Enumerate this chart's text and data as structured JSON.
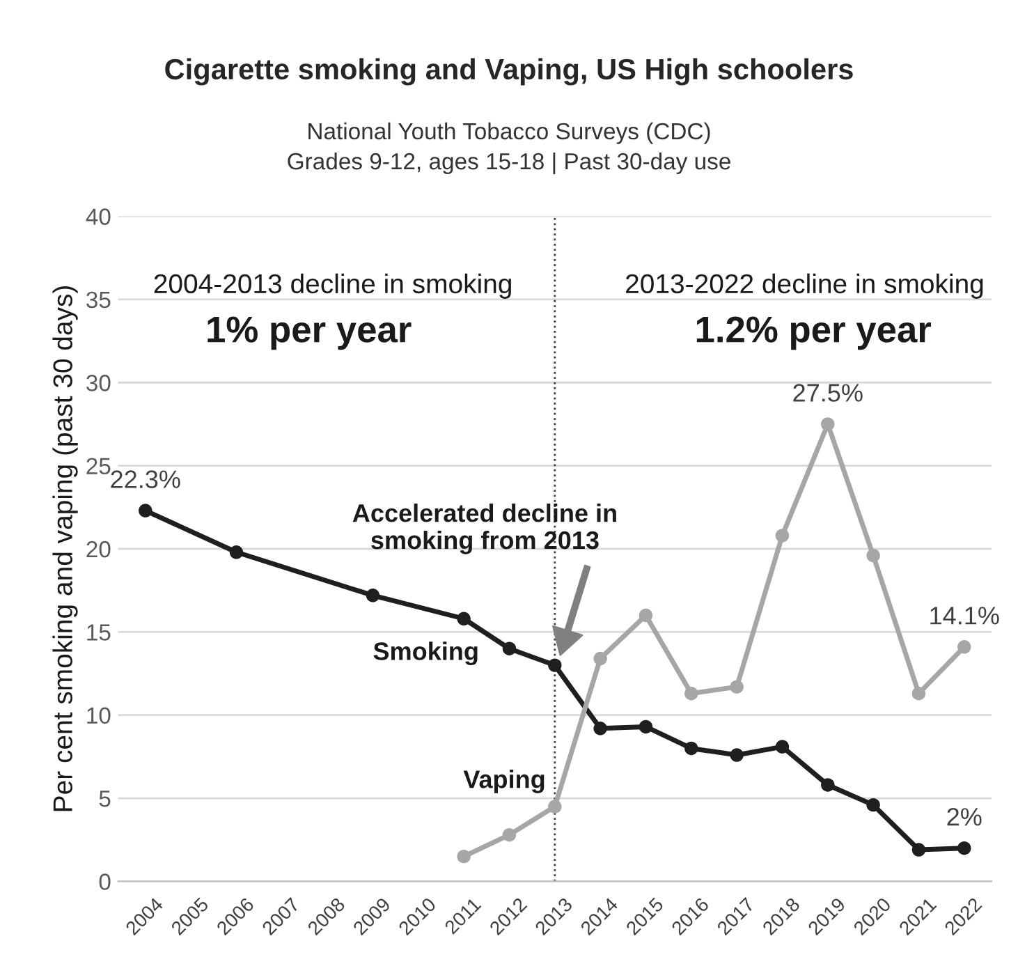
{
  "chart_data": {
    "type": "line",
    "title": "Cigarette smoking and Vaping, US High schoolers",
    "subtitle": "National Youth Tobacco Surveys (CDC)\nGrades 9-12, ages 15-18 | Past 30-day use",
    "ylabel": "Per cent smoking and vaping (past 30 days)",
    "categories": [
      "2004",
      "2005",
      "2006",
      "2007",
      "2008",
      "2009",
      "2010",
      "2011",
      "2012",
      "2013",
      "2014",
      "2015",
      "2016",
      "2017",
      "2018",
      "2019",
      "2020",
      "2021",
      "2022"
    ],
    "series": [
      {
        "name": "Smoking",
        "color": "#1f1f1f",
        "values": [
          22.3,
          null,
          19.8,
          null,
          null,
          17.2,
          null,
          15.8,
          14.0,
          13.0,
          9.2,
          9.3,
          8.0,
          7.6,
          8.1,
          5.8,
          4.6,
          1.9,
          2.0
        ],
        "value_labels": [
          "22.3%",
          null,
          null,
          null,
          null,
          null,
          null,
          null,
          null,
          null,
          null,
          null,
          null,
          null,
          null,
          null,
          null,
          null,
          "2%"
        ]
      },
      {
        "name": "Vaping",
        "color": "#a6a6a6",
        "values": [
          null,
          null,
          null,
          null,
          null,
          null,
          null,
          1.5,
          2.8,
          4.5,
          13.4,
          16.0,
          11.3,
          11.7,
          20.8,
          27.5,
          19.6,
          11.3,
          14.1
        ],
        "value_labels": [
          null,
          null,
          null,
          null,
          null,
          null,
          null,
          null,
          null,
          null,
          null,
          null,
          null,
          null,
          null,
          "27.5%",
          null,
          null,
          "14.1%"
        ]
      }
    ],
    "ylim": [
      0,
      40
    ],
    "yticks": [
      0,
      5,
      10,
      15,
      20,
      25,
      30,
      35,
      40
    ],
    "grid": "y",
    "marker": "circle",
    "line_style": "solid",
    "ref_lines": [
      {
        "axis": "x",
        "value": "2013",
        "label": null,
        "color": "#404040",
        "line_style": "dotted"
      }
    ],
    "annotations": [
      "2004-2013 decline in smoking",
      "1% per year",
      "2013-2022 decline in smoking",
      "1.2% per year",
      "Accelerated decline in\nsmoking from 2013"
    ]
  }
}
